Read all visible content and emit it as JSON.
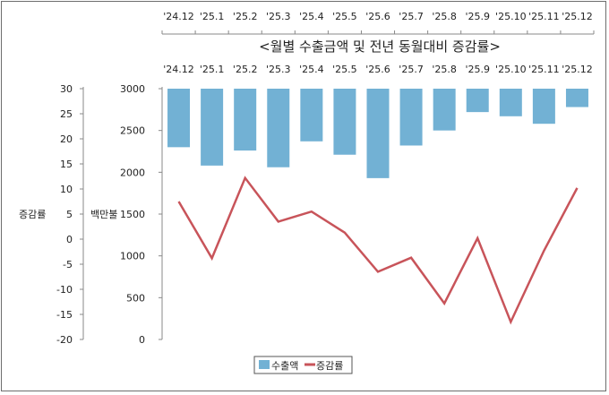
{
  "chart_data": {
    "type": "bar+line",
    "title": "<월별 수출금액 및 전년 동월대비 증감률>",
    "categories": [
      "'24.12",
      "'25.1",
      "'25.2",
      "'25.3",
      "'25.4",
      "'25.5",
      "'25.6",
      "'25.7",
      "'25.8",
      "'25.9",
      "'25.10",
      "'25.11",
      "'25.12"
    ],
    "series": [
      {
        "name": "수출액",
        "type": "bar",
        "axis": "left",
        "color": "#72b1d4",
        "values": [
          2300,
          2080,
          2260,
          2060,
          2370,
          2210,
          1930,
          2320,
          2500,
          2720,
          2670,
          2580,
          2780
        ]
      },
      {
        "name": "증감률",
        "type": "line",
        "axis": "right",
        "color": "#c8545a",
        "values": [
          7.5,
          -3.8,
          12.2,
          3.5,
          5.5,
          1.3,
          -6.5,
          -3.7,
          -12.8,
          0.2,
          -16.5,
          -2.3,
          10.2
        ]
      }
    ],
    "left_axis": {
      "label": "백만불",
      "min": 0,
      "max": 3000,
      "ticks": [
        "3000",
        "2500",
        "2000",
        "1500",
        "1000",
        "500",
        "0"
      ]
    },
    "right_axis": {
      "label": "증감률",
      "min": -20,
      "max": 30,
      "ticks": [
        "30",
        "25",
        "20",
        "15",
        "10",
        "5",
        "0",
        "-5",
        "-10",
        "-15",
        "-20"
      ]
    },
    "bars_hang_from_top": true,
    "legend": {
      "position": "bottom",
      "items": [
        "수출액",
        "증감률"
      ]
    }
  }
}
